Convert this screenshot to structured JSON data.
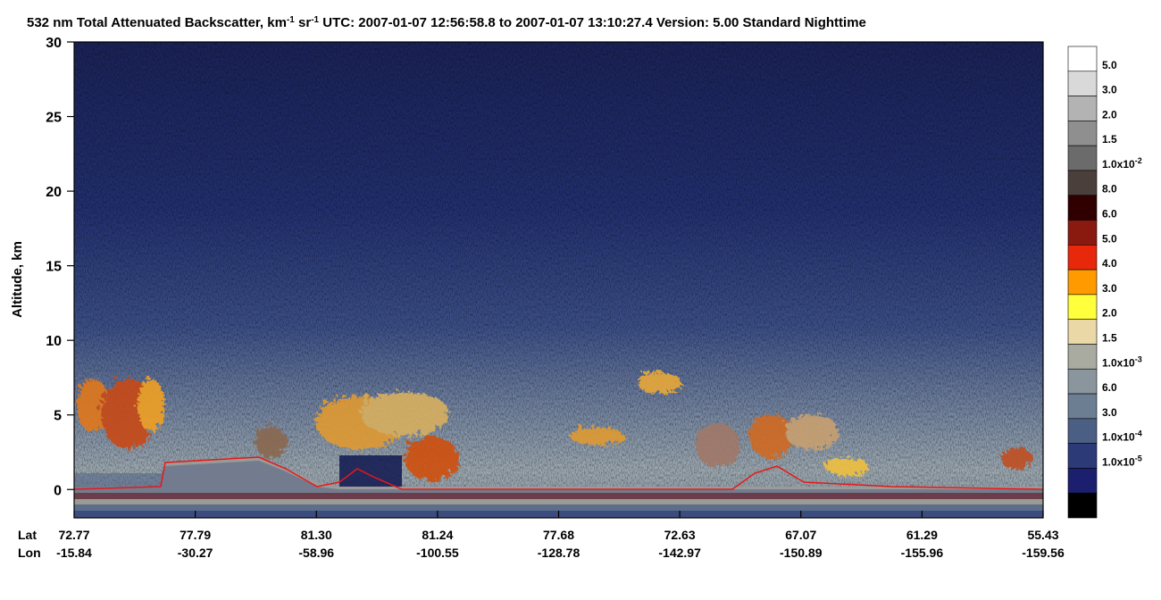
{
  "chart_data": {
    "type": "heatmap",
    "title_parts": [
      "532 nm Total Attenuated Backscatter, km",
      "-1",
      " sr",
      "-1",
      "    UTC:  2007-01-07 12:56:58.8  to  2007-01-07 13:10:27.4    Version: 5.00  Standard  Nighttime"
    ],
    "ylabel": "Altitude, km",
    "ylim": [
      -1.9,
      30
    ],
    "yticks": [
      0,
      5,
      10,
      15,
      20,
      25,
      30
    ],
    "x_rows": [
      {
        "name": "Lat",
        "labels": [
          "72.77",
          "77.79",
          "81.30",
          "81.24",
          "77.68",
          "72.63",
          "67.07",
          "61.29",
          "55.43"
        ]
      },
      {
        "name": "Lon",
        "labels": [
          "-15.84",
          "-30.27",
          "-58.96",
          "-100.55",
          "-128.78",
          "-142.97",
          "-150.89",
          "-155.96",
          "-159.56"
        ]
      }
    ],
    "colorbar": {
      "colors": [
        "#ffffff",
        "#d9d9d9",
        "#b3b3b3",
        "#8f8f8f",
        "#6b6b6b",
        "#4a3f3b",
        "#300000",
        "#8a1a10",
        "#e8280a",
        "#ff9a00",
        "#ffff3c",
        "#ead8a6",
        "#a9aaa0",
        "#8a959d",
        "#6c7e92",
        "#4b5e84",
        "#2c3b78",
        "#1c1f6e",
        "#000000"
      ],
      "labels": [
        "5.0",
        "3.0",
        "2.0",
        "1.5",
        {
          "base": "1.0x10",
          "exp": "-2"
        },
        "8.0",
        "6.0",
        "5.0",
        "4.0",
        "3.0",
        "2.0",
        "1.5",
        {
          "base": "1.0x10",
          "exp": "-3"
        },
        "6.0",
        "3.0",
        {
          "base": "1.0x10",
          "exp": "-4"
        },
        {
          "base": "1.0x10",
          "exp": "-5"
        }
      ]
    }
  }
}
